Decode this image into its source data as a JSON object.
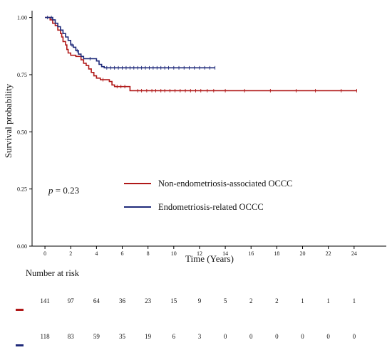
{
  "chart_data": {
    "type": "line",
    "subtype": "kaplan-meier",
    "title": "",
    "xlabel": "Time (Years)",
    "ylabel": "Survival probability",
    "xlim": [
      -1,
      26.5
    ],
    "ylim": [
      0,
      1.03
    ],
    "x_ticks": [
      "0",
      "2",
      "4",
      "6",
      "8",
      "10",
      "12",
      "14",
      "16",
      "18",
      "20",
      "22",
      "24"
    ],
    "y_ticks": [
      "0.00",
      "0.25",
      "0.50",
      "0.75",
      "1.00"
    ],
    "grid": false,
    "legend_position": "center-left",
    "annotation": {
      "p_symbol": "p",
      "p_value": " = 0.23"
    },
    "series": [
      {
        "name": "Non-endometriosis-associated OCCC",
        "color": "#b01818",
        "steps": [
          [
            0,
            1.0
          ],
          [
            0.4,
            0.99
          ],
          [
            0.6,
            0.975
          ],
          [
            0.8,
            0.965
          ],
          [
            1.0,
            0.945
          ],
          [
            1.2,
            0.93
          ],
          [
            1.3,
            0.915
          ],
          [
            1.4,
            0.895
          ],
          [
            1.6,
            0.88
          ],
          [
            1.7,
            0.86
          ],
          [
            1.8,
            0.845
          ],
          [
            2.0,
            0.835
          ],
          [
            2.4,
            0.83
          ],
          [
            2.8,
            0.815
          ],
          [
            3.0,
            0.8
          ],
          [
            3.2,
            0.79
          ],
          [
            3.4,
            0.775
          ],
          [
            3.6,
            0.76
          ],
          [
            3.8,
            0.745
          ],
          [
            4.0,
            0.735
          ],
          [
            4.3,
            0.728
          ],
          [
            5.0,
            0.72
          ],
          [
            5.2,
            0.705
          ],
          [
            5.4,
            0.698
          ],
          [
            6.6,
            0.68
          ],
          [
            24.2,
            0.68
          ]
        ],
        "censored": [
          4.5,
          5.6,
          5.9,
          6.2,
          7.2,
          7.5,
          7.9,
          8.3,
          8.6,
          9.0,
          9.3,
          9.7,
          10.1,
          10.5,
          10.9,
          11.3,
          11.7,
          12.1,
          12.6,
          13.1,
          14.0,
          15.5,
          17.5,
          19.5,
          21.0,
          23.0,
          24.2
        ]
      },
      {
        "name": "Endometriosis-related OCCC",
        "color": "#1f2a7a",
        "steps": [
          [
            0,
            1.0
          ],
          [
            0.6,
            0.99
          ],
          [
            0.8,
            0.975
          ],
          [
            1.0,
            0.96
          ],
          [
            1.2,
            0.945
          ],
          [
            1.4,
            0.93
          ],
          [
            1.6,
            0.915
          ],
          [
            1.8,
            0.9
          ],
          [
            2.0,
            0.88
          ],
          [
            2.2,
            0.87
          ],
          [
            2.4,
            0.855
          ],
          [
            2.6,
            0.84
          ],
          [
            2.8,
            0.83
          ],
          [
            3.0,
            0.82
          ],
          [
            4.0,
            0.81
          ],
          [
            4.2,
            0.795
          ],
          [
            4.4,
            0.785
          ],
          [
            4.6,
            0.78
          ],
          [
            13.2,
            0.78
          ]
        ],
        "censored": [
          0.2,
          0.5,
          2.1,
          2.5,
          3.5,
          4.8,
          5.1,
          5.4,
          5.7,
          6.0,
          6.3,
          6.6,
          6.9,
          7.2,
          7.5,
          7.8,
          8.1,
          8.4,
          8.7,
          9.0,
          9.3,
          9.6,
          10.0,
          10.4,
          10.8,
          11.2,
          11.6,
          12.0,
          12.4,
          12.8,
          13.2
        ]
      }
    ],
    "risk_table": {
      "title": "Number at risk",
      "rows": [
        {
          "color": "#b01818",
          "values": [
            "141",
            "97",
            "64",
            "36",
            "23",
            "15",
            "9",
            "5",
            "2",
            "2",
            "1",
            "1",
            "1"
          ]
        },
        {
          "color": "#1f2a7a",
          "values": [
            "118",
            "83",
            "59",
            "35",
            "19",
            "6",
            "3",
            "0",
            "0",
            "0",
            "0",
            "0",
            "0"
          ]
        }
      ]
    }
  }
}
